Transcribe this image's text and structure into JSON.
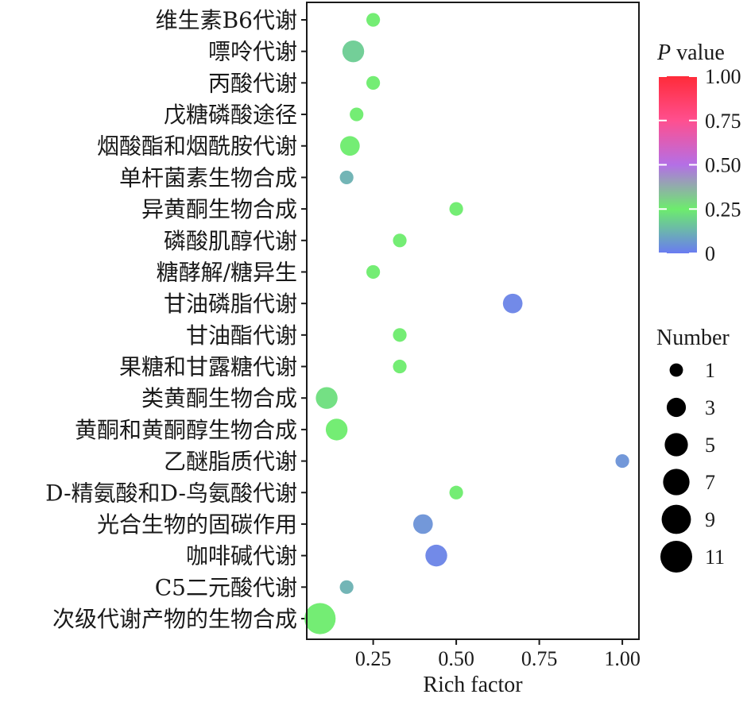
{
  "chart_data": {
    "type": "scatter",
    "xlabel": "Rich factor",
    "ylabel": "",
    "xlim": [
      0.05,
      1.05
    ],
    "xticks": [
      "0.25",
      "0.50",
      "0.75",
      "1.00"
    ],
    "xtick_values": [
      0.25,
      0.5,
      0.75,
      1.0
    ],
    "grid": false,
    "categories": [
      "维生素B6代谢",
      "嘌呤代谢",
      "丙酸代谢",
      "戊糖磷酸途径",
      "烟酸酯和烟酰胺代谢",
      "单杆菌素生物合成",
      "异黄酮生物合成",
      "磷酸肌醇代谢",
      "糖酵解/糖异生",
      "甘油磷脂代谢",
      "甘油酯代谢",
      "果糖和甘露糖代谢",
      "类黄酮生物合成",
      "黄酮和黄酮醇生物合成",
      "乙醚脂质代谢",
      "D-精氨酸和D-鸟氨酸代谢",
      "光合生物的固碳作用",
      "咖啡碱代谢",
      "C5二元酸代谢",
      "次级代谢产物的生物合成"
    ],
    "points": [
      {
        "category": "维生素B6代谢",
        "rich_factor": 0.25,
        "p_value": 0.25,
        "number": 1
      },
      {
        "category": "嘌呤代谢",
        "rich_factor": 0.19,
        "p_value": 0.18,
        "number": 4
      },
      {
        "category": "丙酸代谢",
        "rich_factor": 0.25,
        "p_value": 0.25,
        "number": 1
      },
      {
        "category": "戊糖磷酸途径",
        "rich_factor": 0.2,
        "p_value": 0.25,
        "number": 1
      },
      {
        "category": "烟酸酯和烟酰胺代谢",
        "rich_factor": 0.18,
        "p_value": 0.25,
        "number": 3
      },
      {
        "category": "单杆菌素生物合成",
        "rich_factor": 0.17,
        "p_value": 0.12,
        "number": 1
      },
      {
        "category": "异黄酮生物合成",
        "rich_factor": 0.5,
        "p_value": 0.25,
        "number": 1
      },
      {
        "category": "磷酸肌醇代谢",
        "rich_factor": 0.33,
        "p_value": 0.25,
        "number": 1
      },
      {
        "category": "糖酵解/糖异生",
        "rich_factor": 0.25,
        "p_value": 0.25,
        "number": 1
      },
      {
        "category": "甘油磷脂代谢",
        "rich_factor": 0.67,
        "p_value": 0.02,
        "number": 3
      },
      {
        "category": "甘油酯代谢",
        "rich_factor": 0.33,
        "p_value": 0.25,
        "number": 1
      },
      {
        "category": "果糖和甘露糖代谢",
        "rich_factor": 0.33,
        "p_value": 0.25,
        "number": 1
      },
      {
        "category": "类黄酮生物合成",
        "rich_factor": 0.11,
        "p_value": 0.22,
        "number": 4
      },
      {
        "category": "黄酮和黄酮醇生物合成",
        "rich_factor": 0.14,
        "p_value": 0.25,
        "number": 4
      },
      {
        "category": "乙醚脂质代谢",
        "rich_factor": 1.0,
        "p_value": 0.05,
        "number": 1
      },
      {
        "category": "D-精氨酸和D-鸟氨酸代谢",
        "rich_factor": 0.5,
        "p_value": 0.25,
        "number": 1
      },
      {
        "category": "光合生物的固碳作用",
        "rich_factor": 0.4,
        "p_value": 0.05,
        "number": 3
      },
      {
        "category": "咖啡碱代谢",
        "rich_factor": 0.44,
        "p_value": 0.02,
        "number": 4
      },
      {
        "category": "C5二元酸代谢",
        "rich_factor": 0.17,
        "p_value": 0.12,
        "number": 1
      },
      {
        "category": "次级代谢产物的生物合成",
        "rich_factor": 0.09,
        "p_value": 0.25,
        "number": 10
      }
    ],
    "color_legend": {
      "title_italic": "P",
      "title_rest": " value",
      "ticks": [
        "1.00",
        "0.75",
        "0.50",
        "0.25",
        "0"
      ],
      "tick_values": [
        1.0,
        0.75,
        0.5,
        0.25,
        0.0
      ],
      "gradient_stops": [
        {
          "value": 0.0,
          "color": "#6a7bf2"
        },
        {
          "value": 0.25,
          "color": "#6dec6d"
        },
        {
          "value": 0.5,
          "color": "#b46fe6"
        },
        {
          "value": 0.75,
          "color": "#ff4f8f"
        },
        {
          "value": 1.0,
          "color": "#ff2b39"
        }
      ]
    },
    "size_legend": {
      "title": "Number",
      "labels": [
        "1",
        "3",
        "5",
        "7",
        "9",
        "11"
      ],
      "values": [
        1,
        3,
        5,
        7,
        9,
        11
      ]
    }
  }
}
